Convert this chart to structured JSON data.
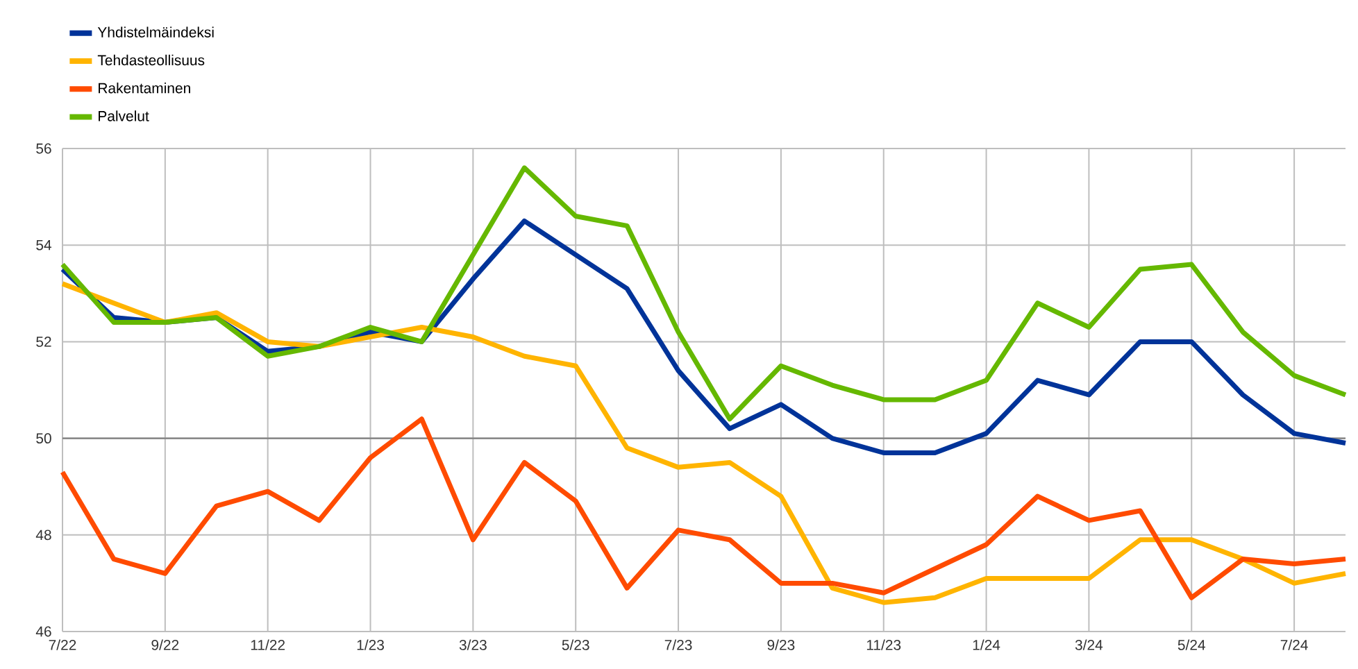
{
  "chart_data": {
    "type": "line",
    "categories": [
      "7/22",
      null,
      "9/22",
      null,
      "11/22",
      null,
      "1/23",
      null,
      "3/23",
      null,
      "5/23",
      null,
      "7/23",
      null,
      "9/23",
      null,
      "11/23",
      null,
      "1/24",
      null,
      "3/24",
      null,
      "5/24",
      null,
      "7/24",
      null
    ],
    "series": [
      {
        "name": "Yhdistelmäindeksi",
        "color": "#003399",
        "values": [
          53.5,
          52.5,
          52.4,
          52.5,
          51.8,
          51.9,
          52.2,
          52.0,
          53.3,
          54.5,
          53.8,
          53.1,
          51.4,
          50.2,
          50.7,
          50.0,
          49.7,
          49.7,
          50.1,
          51.2,
          50.9,
          52.0,
          52.0,
          50.9,
          50.1,
          49.9
        ]
      },
      {
        "name": "Tehdasteollisuus",
        "color": "#ffb400",
        "values": [
          53.2,
          52.8,
          52.4,
          52.6,
          52.0,
          51.9,
          52.1,
          52.3,
          52.1,
          51.7,
          51.5,
          49.8,
          49.4,
          49.5,
          48.8,
          46.9,
          46.6,
          46.7,
          47.1,
          47.1,
          47.1,
          47.9,
          47.9,
          47.5,
          47.0,
          47.2
        ]
      },
      {
        "name": "Rakentaminen",
        "color": "#ff4b00",
        "values": [
          49.3,
          47.5,
          47.2,
          48.6,
          48.9,
          48.3,
          49.6,
          50.4,
          47.9,
          49.5,
          48.7,
          46.9,
          48.1,
          47.9,
          47.0,
          47.0,
          46.8,
          47.3,
          47.8,
          48.8,
          48.3,
          48.5,
          46.7,
          47.5,
          47.4,
          47.5
        ]
      },
      {
        "name": "Palvelut",
        "color": "#65b800",
        "values": [
          53.6,
          52.4,
          52.4,
          52.5,
          51.7,
          51.9,
          52.3,
          52.0,
          53.8,
          55.6,
          54.6,
          54.4,
          52.2,
          50.4,
          51.5,
          51.1,
          50.8,
          50.8,
          51.2,
          52.8,
          52.3,
          53.5,
          53.6,
          52.2,
          51.3,
          50.9
        ]
      }
    ],
    "ylim": [
      46,
      56
    ],
    "yticks": [
      46,
      48,
      50,
      52,
      54,
      56
    ],
    "grid": true,
    "legend": "top left",
    "marker": "none",
    "line_style": "solid",
    "ref_lines": [
      {
        "axis": "y",
        "value": 50,
        "color": "#808080"
      }
    ]
  }
}
